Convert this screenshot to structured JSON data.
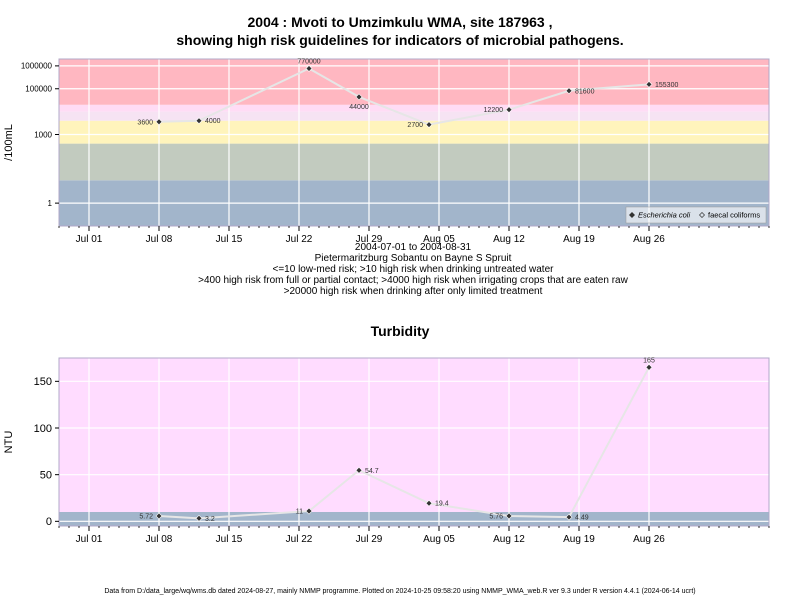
{
  "colors": {
    "band_red": "#ffb7c1",
    "band_pink": "#ffdcf5",
    "band_lightpink": "#f6e3f3",
    "band_yellow": "#fff4bc",
    "band_sage": "#c2cbbf",
    "band_blue": "#a2b5cb",
    "turb_pink": "#ffdcff",
    "turb_blue": "#a2b5cb",
    "line": "#e6e6e6",
    "point": "#333333"
  },
  "chart_data": [
    {
      "type": "line",
      "title_line1": "2004 : Mvoti to Umzimkulu WMA, site 187963 ,",
      "title_line2": "showing high risk guidelines for indicators of microbial pathogens.",
      "ylabel": "/100mL",
      "y_scale": "log",
      "ylim": [
        0.1,
        2000000
      ],
      "xlim": [
        "2004-06-28",
        "2004-09-07"
      ],
      "yticks": [
        {
          "v": 1,
          "label": "1"
        },
        {
          "v": 1000,
          "label": "1000"
        },
        {
          "v": 100000,
          "label": "100000"
        },
        {
          "v": 1000000,
          "label": "1000000"
        }
      ],
      "xticks": [
        {
          "date": "2004-07-01",
          "label": "Jul 01"
        },
        {
          "date": "2004-07-08",
          "label": "Jul 08"
        },
        {
          "date": "2004-07-15",
          "label": "Jul 15"
        },
        {
          "date": "2004-07-22",
          "label": "Jul 22"
        },
        {
          "date": "2004-07-29",
          "label": "Jul 29"
        },
        {
          "date": "2004-08-05",
          "label": "Aug 05"
        },
        {
          "date": "2004-08-12",
          "label": "Aug 12"
        },
        {
          "date": "2004-08-19",
          "label": "Aug 19"
        },
        {
          "date": "2004-08-26",
          "label": "Aug 26"
        }
      ],
      "bands": [
        {
          "from": 0.1,
          "to": 10,
          "color": "#a2b5cb"
        },
        {
          "from": 10,
          "to": 400,
          "color": "#c2cbbf"
        },
        {
          "from": 400,
          "to": 4000,
          "color": "#fff4bc"
        },
        {
          "from": 4000,
          "to": 10000,
          "color": "#f6e3f3"
        },
        {
          "from": 10000,
          "to": 20000,
          "color": "#ffdcf5"
        },
        {
          "from": 20000,
          "to": 2000000,
          "color": "#ffb7c1"
        }
      ],
      "series": [
        {
          "name": "Escherichia coli",
          "points": [
            {
              "date": "2004-07-08",
              "value": 3600,
              "label": "3600",
              "side": "left"
            },
            {
              "date": "2004-07-12",
              "value": 4000,
              "label": "4000",
              "side": "right"
            },
            {
              "date": "2004-07-23",
              "value": 770000,
              "label": "770000",
              "side": "top"
            },
            {
              "date": "2004-07-28",
              "value": 44000,
              "label": "44000",
              "side": "bottom"
            },
            {
              "date": "2004-08-04",
              "value": 2700,
              "label": "2700",
              "side": "left"
            },
            {
              "date": "2004-08-12",
              "value": 12200,
              "label": "12200",
              "side": "left"
            },
            {
              "date": "2004-08-18",
              "value": 81600,
              "label": "81600",
              "side": "right"
            },
            {
              "date": "2004-08-26",
              "value": 155300,
              "label": "155300",
              "side": "right"
            }
          ]
        }
      ],
      "legend": {
        "placement": "bottom-right",
        "items": [
          {
            "label": "Escherichia coli",
            "italic": true,
            "marker": "filled"
          },
          {
            "label": "faecal coliforms",
            "italic": false,
            "marker": "open"
          }
        ]
      },
      "caption_lines": [
        "2004-07-01 to 2004-08-31",
        "Pietermaritzburg Sobantu on Bayne S Spruit",
        "<=10 low-med risk; >10 high risk when drinking untreated water",
        ">400 high risk from full or partial contact; >4000 high risk when irrigating crops that are eaten raw",
        ">20000 high risk when drinking after only limited treatment"
      ]
    },
    {
      "type": "line",
      "title": "Turbidity",
      "ylabel": "NTU",
      "y_scale": "linear",
      "ylim": [
        -5,
        175
      ],
      "xlim": [
        "2004-06-28",
        "2004-09-07"
      ],
      "yticks": [
        {
          "v": 0,
          "label": "0"
        },
        {
          "v": 50,
          "label": "50"
        },
        {
          "v": 100,
          "label": "100"
        },
        {
          "v": 150,
          "label": "150"
        }
      ],
      "xticks": [
        {
          "date": "2004-07-01",
          "label": "Jul 01"
        },
        {
          "date": "2004-07-08",
          "label": "Jul 08"
        },
        {
          "date": "2004-07-15",
          "label": "Jul 15"
        },
        {
          "date": "2004-07-22",
          "label": "Jul 22"
        },
        {
          "date": "2004-07-29",
          "label": "Jul 29"
        },
        {
          "date": "2004-08-05",
          "label": "Aug 05"
        },
        {
          "date": "2004-08-12",
          "label": "Aug 12"
        },
        {
          "date": "2004-08-19",
          "label": "Aug 19"
        },
        {
          "date": "2004-08-26",
          "label": "Aug 26"
        }
      ],
      "bands": [
        {
          "from": -5,
          "to": 10,
          "color": "#a2b5cb"
        },
        {
          "from": 10,
          "to": 175,
          "color": "#ffdcff"
        }
      ],
      "series": [
        {
          "name": "",
          "points": [
            {
              "date": "2004-07-08",
              "value": 5.72,
              "label": "5.72",
              "side": "left"
            },
            {
              "date": "2004-07-12",
              "value": 3.2,
              "label": "3.2",
              "side": "right"
            },
            {
              "date": "2004-07-23",
              "value": 11,
              "label": "11",
              "side": "left"
            },
            {
              "date": "2004-07-28",
              "value": 54.7,
              "label": "54.7",
              "side": "right"
            },
            {
              "date": "2004-08-04",
              "value": 19.4,
              "label": "19.4",
              "side": "right"
            },
            {
              "date": "2004-08-12",
              "value": 5.76,
              "label": "5.76",
              "side": "left"
            },
            {
              "date": "2004-08-18",
              "value": 4.49,
              "label": "4.49",
              "side": "right"
            },
            {
              "date": "2004-08-26",
              "value": 165,
              "label": "165",
              "side": "top"
            }
          ]
        }
      ]
    }
  ],
  "footer": "Data from D:/data_large/wq/wms.db dated 2024-08-27, mainly NMMP programme. Plotted on 2024-10-25 09:58:20 using NMMP_WMA_web.R ver 9.3 under R version 4.4.1 (2024-06-14 ucrt)"
}
